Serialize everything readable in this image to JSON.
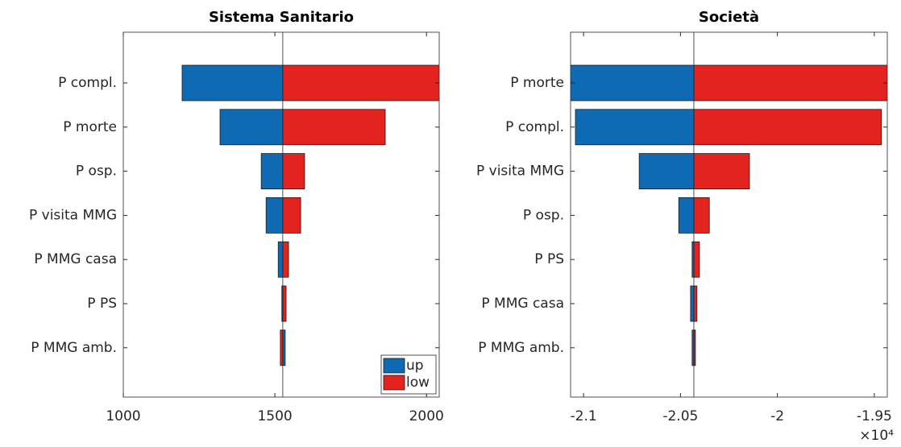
{
  "chart_data": [
    {
      "type": "tornado",
      "title": "Sistema Sanitario",
      "categories": [
        "P compl.",
        "P morte",
        "P osp.",
        "P visita MMG",
        "P MMG casa",
        "P PS",
        "P MMG amb."
      ],
      "base": 1526,
      "series": [
        {
          "name": "up",
          "color": "#0f6ab4",
          "values": [
            1194,
            1319,
            1455,
            1471,
            1511,
            1523,
            1534
          ]
        },
        {
          "name": "low",
          "color": "#e4231e",
          "values": [
            2060,
            1864,
            1598,
            1585,
            1545,
            1537,
            1518
          ]
        }
      ],
      "xlim": [
        1000,
        2042
      ],
      "xticks": [
        1000,
        1500,
        2000
      ],
      "legend": "lower right"
    },
    {
      "type": "tornado",
      "title": "Società",
      "categories": [
        "P morte",
        "P compl.",
        "P visita MMG",
        "P osp.",
        "P PS",
        "P MMG casa",
        "P MMG amb."
      ],
      "base": -2.0431,
      "series": [
        {
          "name": "up",
          "color": "#0f6ab4",
          "values": [
            -2.112,
            -2.1042,
            -2.0713,
            -2.0509,
            -2.044,
            -2.0448,
            -2.044
          ]
        },
        {
          "name": "low",
          "color": "#e4231e",
          "values": [
            -1.938,
            -1.9463,
            -2.0144,
            -2.0351,
            -2.0402,
            -2.0415,
            -2.0423
          ]
        }
      ],
      "xlim": [
        -2.1067,
        -1.9433
      ],
      "xticks": [
        -2.1,
        -2.05,
        -2,
        -1.95
      ],
      "x_exponent_label": "×10⁴",
      "legend": "none"
    }
  ]
}
